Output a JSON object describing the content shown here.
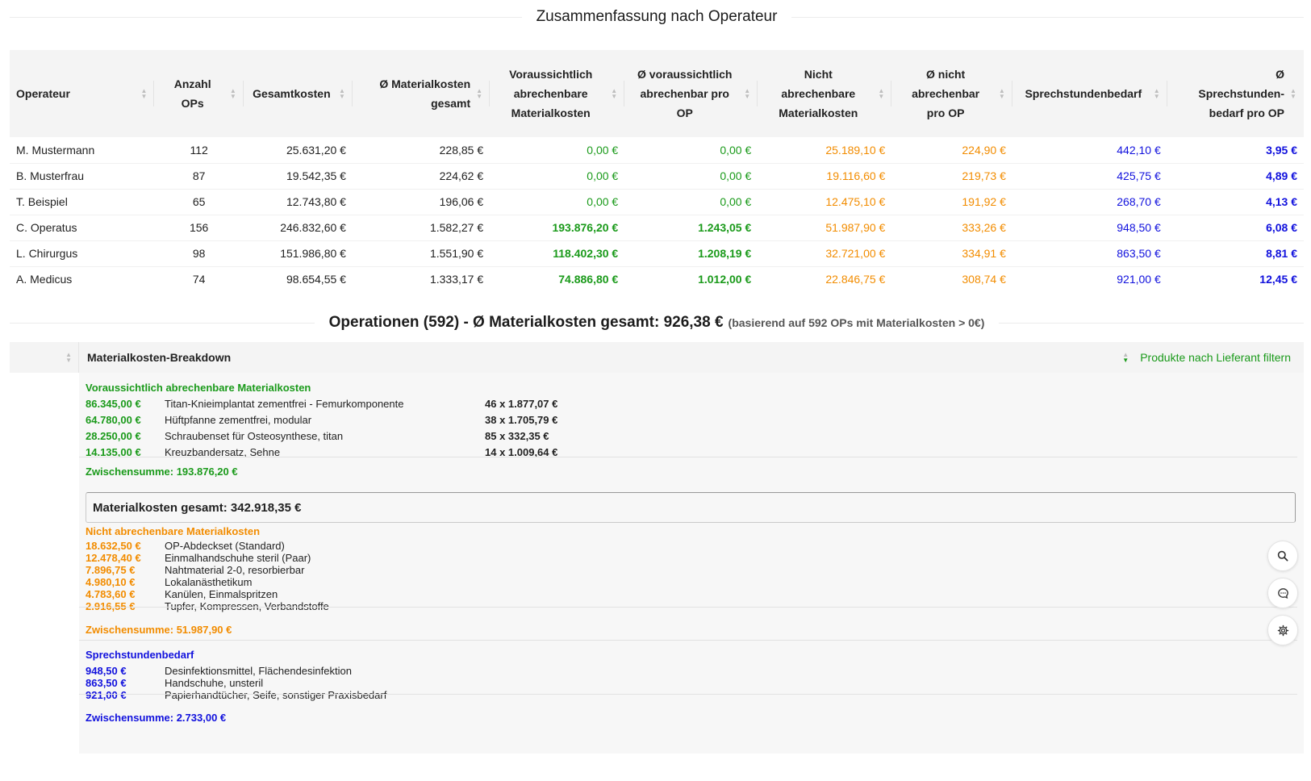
{
  "summary_title": "Zusammenfassung nach Operateur",
  "summary_table": {
    "headers": [
      "Operateur",
      "Anzahl OPs",
      "Gesamtkosten",
      "Ø Materialkosten gesamt",
      "Voraussichtlich abrechenbare Materialkosten",
      "Ø voraussichtlich abrechenbar pro OP",
      "Nicht abrechenbare Materialkosten",
      "Ø nicht abrechenbar pro OP",
      "Sprechstundenbedarf",
      "Ø Sprechstunden-bedarf pro OP"
    ],
    "rows": [
      [
        "M. Mustermann",
        "112",
        "25.631,20 €",
        "228,85 €",
        "0,00 €",
        "0,00 €",
        "25.189,10 €",
        "224,90 €",
        "442,10 €",
        "3,95 €"
      ],
      [
        "B. Musterfrau",
        "87",
        "19.542,35 €",
        "224,62 €",
        "0,00 €",
        "0,00 €",
        "19.116,60 €",
        "219,73 €",
        "425,75 €",
        "4,89 €"
      ],
      [
        "T. Beispiel",
        "65",
        "12.743,80 €",
        "196,06 €",
        "0,00 €",
        "0,00 €",
        "12.475,10 €",
        "191,92 €",
        "268,70 €",
        "4,13 €"
      ],
      [
        "C. Operatus",
        "156",
        "246.832,60 €",
        "1.582,27 €",
        "193.876,20 €",
        "1.243,05 €",
        "51.987,90 €",
        "333,26 €",
        "948,50 €",
        "6,08 €"
      ],
      [
        "L. Chirurgus",
        "98",
        "151.986,80 €",
        "1.551,90 €",
        "118.402,30 €",
        "1.208,19 €",
        "32.721,00 €",
        "334,91 €",
        "863,50 €",
        "8,81 €"
      ],
      [
        "A. Medicus",
        "74",
        "98.654,55 €",
        "1.333,17 €",
        "74.886,80 €",
        "1.012,00 €",
        "22.846,75 €",
        "308,74 €",
        "921,00 €",
        "12,45 €"
      ]
    ]
  },
  "operations_title": {
    "main": "Operationen (592) - Ø Materialkosten gesamt: 926,38 €",
    "note": "(basierend auf 592 OPs mit Materialkosten > 0€)"
  },
  "breakdown": {
    "header": "Materialkosten-Breakdown",
    "filter_label": "Produkte nach Lieferant filtern",
    "billable": {
      "title": "Voraussichtlich abrechenbare Materialkosten",
      "items": [
        {
          "amount": "86.345,00 €",
          "name": "Titan-Knieimplantat zementfrei - Femurkomponente",
          "qty": "46 x 1.877,07 €"
        },
        {
          "amount": "64.780,00 €",
          "name": "Hüftpfanne zementfrei, modular",
          "qty": "38 x 1.705,79 €"
        },
        {
          "amount": "28.250,00 €",
          "name": "Schraubenset für Osteosynthese, titan",
          "qty": "85 x 332,35 €"
        },
        {
          "amount": "14.135,00 €",
          "name": "Kreuzbandersatz, Sehne",
          "qty": "14 x 1.009,64 €"
        }
      ],
      "subtotal": "Zwischensumme: 193.876,20 €"
    },
    "total": "Materialkosten gesamt: 342.918,35 €",
    "non_billable": {
      "title": "Nicht abrechenbare Materialkosten",
      "items": [
        {
          "amount": "18.632,50 €",
          "name": "OP-Abdeckset (Standard)"
        },
        {
          "amount": "12.478,40 €",
          "name": "Einmalhandschuhe steril (Paar)"
        },
        {
          "amount": "7.896,75 €",
          "name": "Nahtmaterial 2-0, resorbierbar"
        },
        {
          "amount": "4.980,10 €",
          "name": "Lokalanästhetikum"
        },
        {
          "amount": "4.783,60 €",
          "name": "Kanülen, Einmalspritzen"
        },
        {
          "amount": "2.916,55 €",
          "name": "Tupfer, Kompressen, Verbandstoffe"
        }
      ],
      "subtotal": "Zwischensumme: 51.987,90 €"
    },
    "office": {
      "title": "Sprechstundenbedarf",
      "items": [
        {
          "amount": "948,50 €",
          "name": "Desinfektionsmittel, Flächendesinfektion"
        },
        {
          "amount": "863,50 €",
          "name": "Handschuhe, unsteril"
        },
        {
          "amount": "921,00 €",
          "name": "Papierhandtücher, Seife, sonstiger Praxisbedarf"
        }
      ],
      "subtotal": "Zwischensumme: 2.733,00 €"
    }
  },
  "side_buttons": [
    "search-icon",
    "chat-icon",
    "gear-icon"
  ],
  "colors": {
    "billable": "#1a9a1a",
    "non_billable": "#f28c00",
    "office": "#1111dd"
  }
}
